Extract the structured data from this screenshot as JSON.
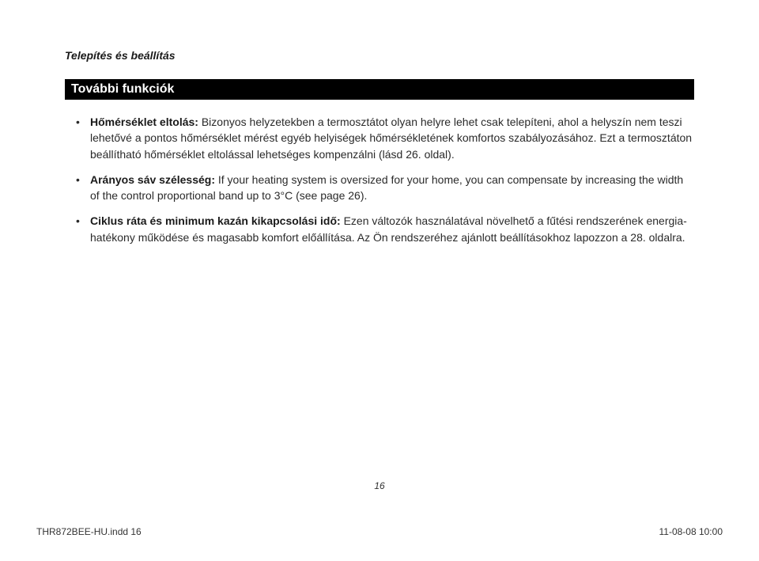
{
  "header": "Telepítés és beállítás",
  "section_title": "További funkciók",
  "bullets": [
    {
      "lead": "Hőmérséklet eltolás:",
      "text": " Bizonyos helyzetekben a termosztátot olyan helyre lehet csak telepíteni, ahol a helyszín nem teszi lehetővé a pontos hőmérséklet mérést egyéb helyiségek hőmérsékletének komfortos szabályozásához. Ezt a termosztáton beállítható hőmérséklet eltolással lehetséges kompenzálni (lásd 26. oldal)."
    },
    {
      "lead": "Arányos sáv szélesség:",
      "text": " If your heating system is oversized for your home, you can compensate by increasing the width of the control proportional band up to 3°C (see page 26)."
    },
    {
      "lead": "Ciklus ráta és minimum kazán kikapcsolási idő:",
      "text": " Ezen változók használatával növelhető a fűtési rendszerének energia-hatékony működése és magasabb komfort előállítása. Az Ön rendszeréhez ajánlott beállításokhoz lapozzon a 28. oldalra."
    }
  ],
  "page_number": "16",
  "footer_left": "THR872BEE-HU.indd   16",
  "footer_right": "11-08-08   10:00"
}
